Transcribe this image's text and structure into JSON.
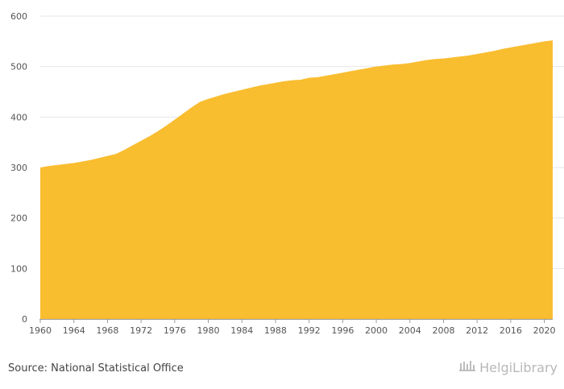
{
  "chart_data": {
    "type": "area",
    "x": [
      1960,
      1961,
      1962,
      1963,
      1964,
      1965,
      1966,
      1967,
      1968,
      1969,
      1970,
      1971,
      1972,
      1973,
      1974,
      1975,
      1976,
      1977,
      1978,
      1979,
      1980,
      1981,
      1982,
      1983,
      1984,
      1985,
      1986,
      1987,
      1988,
      1989,
      1990,
      1991,
      1992,
      1993,
      1994,
      1995,
      1996,
      1997,
      1998,
      1999,
      2000,
      2001,
      2002,
      2003,
      2004,
      2005,
      2006,
      2007,
      2008,
      2009,
      2010,
      2011,
      2012,
      2013,
      2014,
      2015,
      2016,
      2017,
      2018,
      2019,
      2020,
      2021
    ],
    "series": [
      {
        "values": [
          300,
          303,
          305,
          307,
          309,
          312,
          315,
          319,
          323,
          327,
          335,
          344,
          353,
          362,
          372,
          383,
          395,
          407,
          419,
          430,
          436,
          441,
          446,
          450,
          454,
          458,
          462,
          465,
          468,
          471,
          473,
          474,
          478,
          479,
          482,
          485,
          488,
          491,
          494,
          497,
          500,
          502,
          504,
          505,
          507,
          510,
          513,
          515,
          516,
          518,
          520,
          522,
          525,
          528,
          531,
          535,
          538,
          541,
          544,
          547,
          550,
          552
        ],
        "color": "#F9BD30"
      }
    ],
    "ylim": [
      0,
      600
    ],
    "yticks": [
      0,
      100,
      200,
      300,
      400,
      500,
      600
    ],
    "xticks": [
      1960,
      1964,
      1968,
      1972,
      1976,
      1980,
      1984,
      1988,
      1992,
      1996,
      2000,
      2004,
      2008,
      2012,
      2016,
      2020
    ],
    "xlim": [
      1960,
      2021
    ],
    "grid": true
  },
  "footer": {
    "source": "Source: National Statistical Office",
    "logo_text": "HelgiLibrary"
  }
}
